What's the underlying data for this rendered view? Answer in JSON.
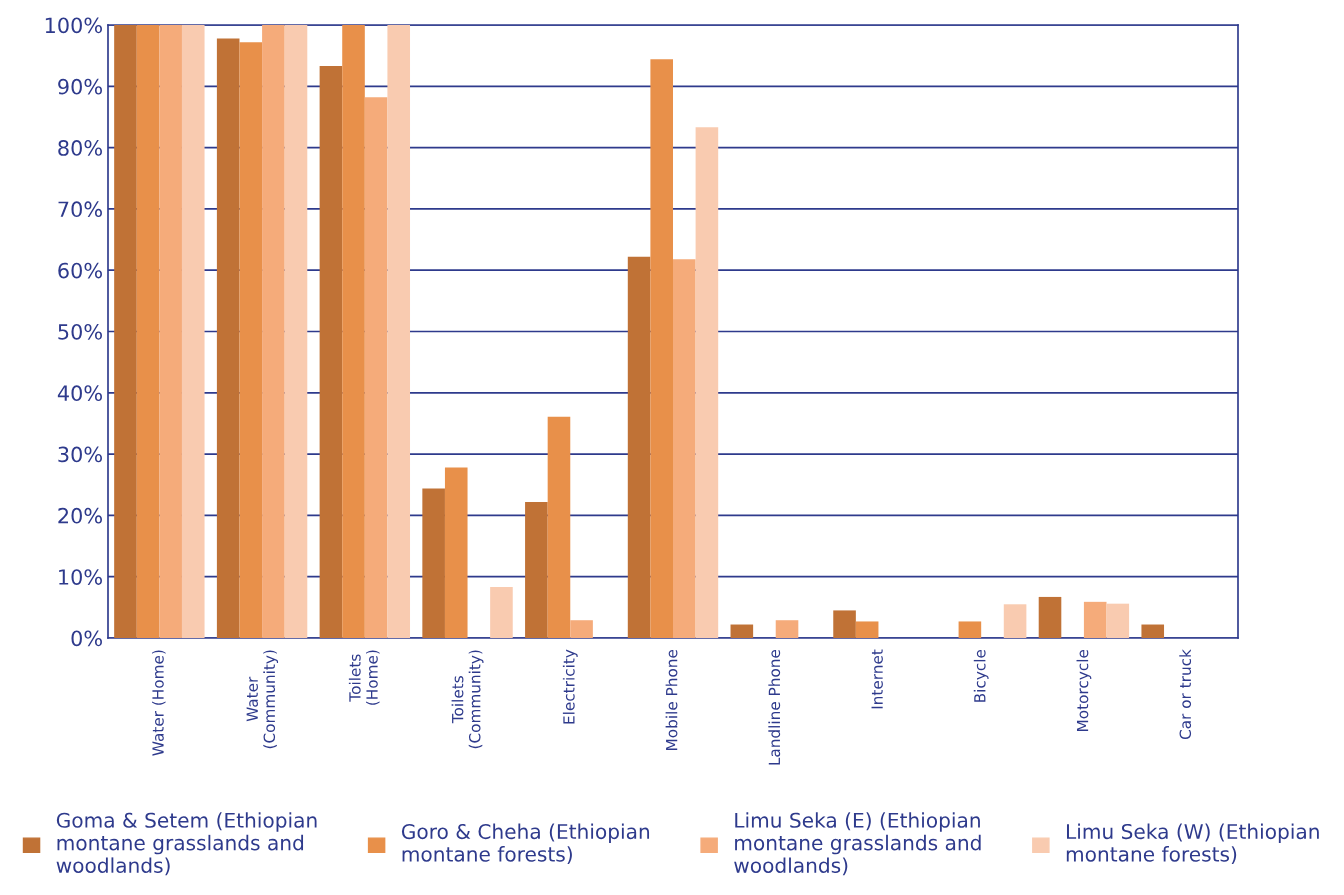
{
  "chart_data": {
    "type": "bar",
    "categories": [
      "Water (Home)",
      "Water\n(Community)",
      "Toilets\n(Home)",
      "Toilets\n(Community)",
      "Electricity",
      "Mobile Phone",
      "Landline Phone",
      "Internet",
      "Bicycle",
      "Motorcycle",
      "Car or truck"
    ],
    "series": [
      {
        "name": "Goma & Setem (Ethiopian montane grasslands and woodlands)",
        "color": "#c07236",
        "values": [
          100,
          97.8,
          93.3,
          24.4,
          22.2,
          62.2,
          2.2,
          4.5,
          0,
          6.7,
          2.2
        ]
      },
      {
        "name": "Goro & Cheha (Ethiopian montane forests)",
        "color": "#e8904a",
        "values": [
          100,
          97.2,
          100,
          27.8,
          36.1,
          94.4,
          0,
          2.7,
          2.7,
          0,
          0
        ]
      },
      {
        "name": "Limu Seka (E) (Ethiopian montane grasslands and woodlands)",
        "color": "#f5ab7a",
        "values": [
          100,
          100,
          88.2,
          0,
          2.9,
          61.8,
          2.9,
          0,
          0,
          5.9,
          0
        ]
      },
      {
        "name": "Limu Seka (W) (Ethiopian montane forests)",
        "color": "#f9cbb0",
        "values": [
          100,
          100,
          100,
          8.3,
          0,
          83.3,
          0,
          0,
          5.5,
          5.6,
          0
        ]
      }
    ],
    "ylim": [
      0,
      100
    ],
    "yticks": [
      {
        "value": 0,
        "label": "0%"
      },
      {
        "value": 10,
        "label": "10%"
      },
      {
        "value": 20,
        "label": "20%"
      },
      {
        "value": 30,
        "label": "30%"
      },
      {
        "value": 40,
        "label": "40%"
      },
      {
        "value": 50,
        "label": "50%"
      },
      {
        "value": 60,
        "label": "60%"
      },
      {
        "value": 70,
        "label": "70%"
      },
      {
        "value": 80,
        "label": "80%"
      },
      {
        "value": 90,
        "label": "90%"
      },
      {
        "value": 100,
        "label": "100%"
      }
    ],
    "grid": "y",
    "legend": "bottom"
  }
}
